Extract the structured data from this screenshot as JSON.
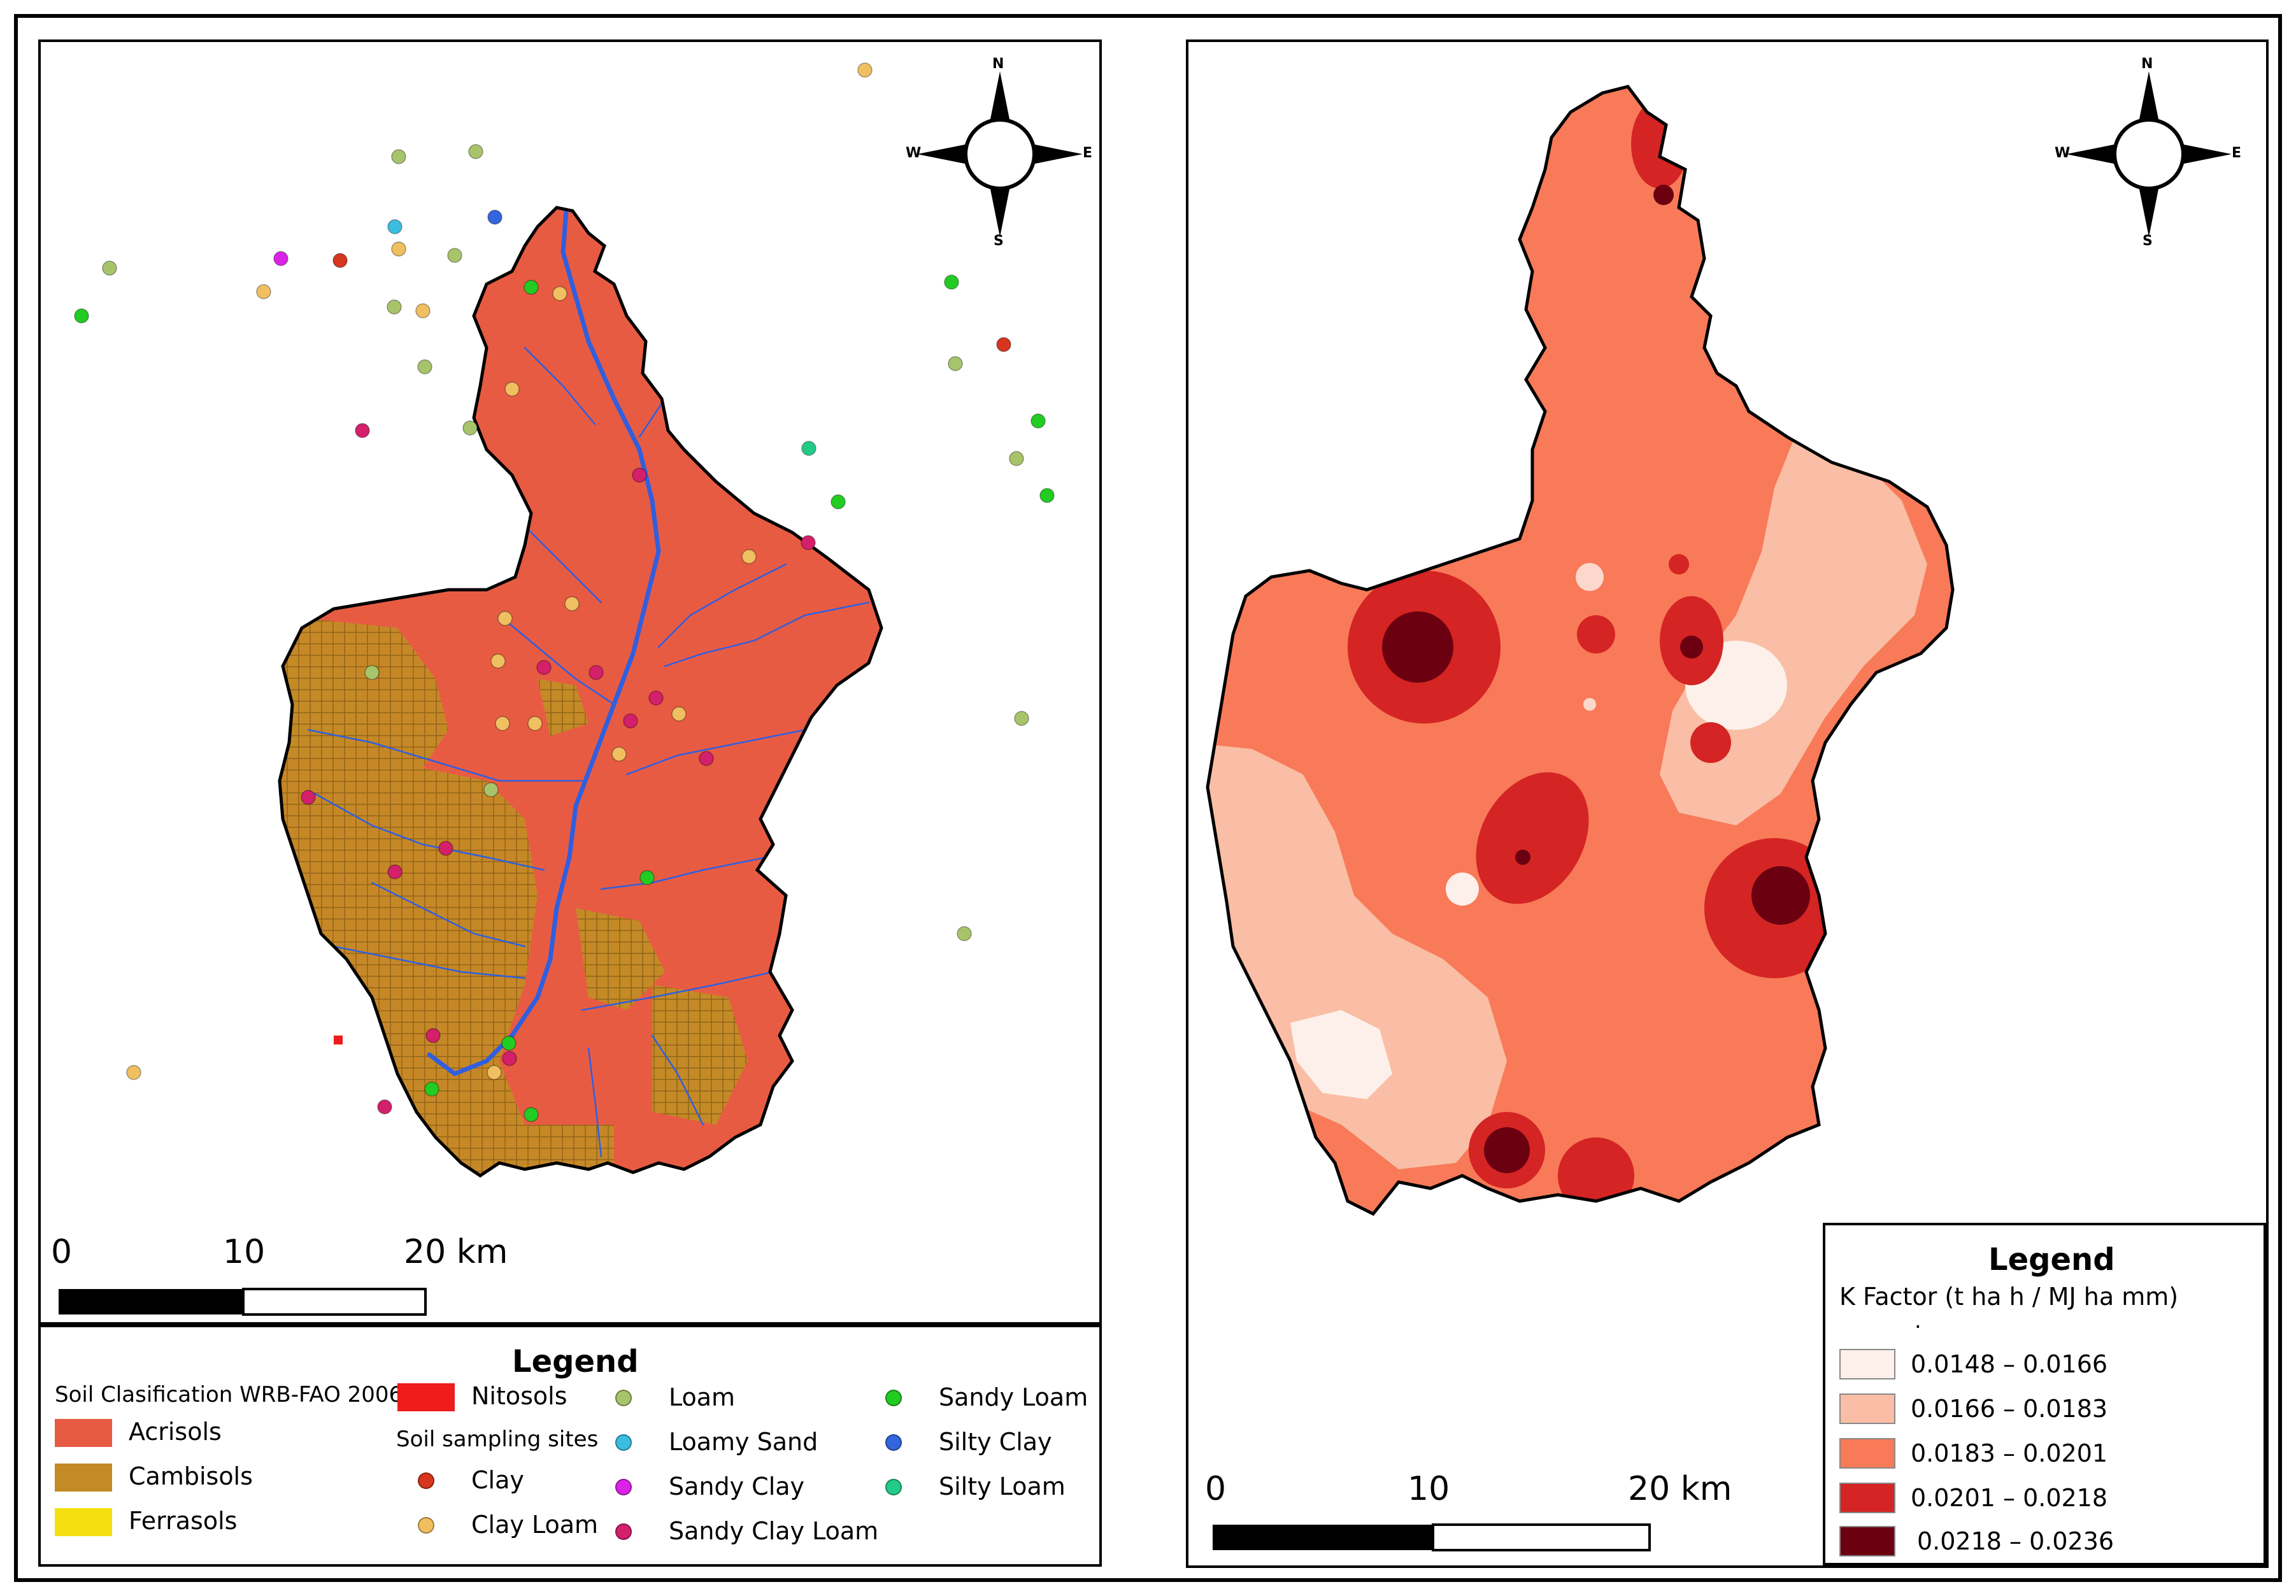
{
  "left_map": {
    "scale": {
      "ticks": [
        "0",
        "10",
        "20 km"
      ]
    },
    "compass": {
      "n": "N",
      "s": "S",
      "e": "E",
      "w": "W"
    },
    "legend": {
      "title": "Legend",
      "soil_class_heading": "Soil Clasification  WRB-FAO 2006",
      "soil_classes": [
        {
          "label": "Acrisols",
          "color": "#e85b43"
        },
        {
          "label": "Cambisols",
          "color": "#c48a26"
        },
        {
          "label": "Ferrasols",
          "color": "#f5df10"
        },
        {
          "label": "Nitosols",
          "color": "#ee1c1c"
        }
      ],
      "sites_heading": "Soil sampling sites",
      "sites": [
        {
          "label": "Clay",
          "color": "#d7351e"
        },
        {
          "label": "Clay Loam",
          "color": "#f0c060"
        },
        {
          "label": "Loam",
          "color": "#a8c46a"
        },
        {
          "label": "Loamy Sand",
          "color": "#3bbde0"
        },
        {
          "label": "Sandy Clay",
          "color": "#dd22e8"
        },
        {
          "label": "Sandy Clay Loam",
          "color": "#d41f6a"
        },
        {
          "label": "Sandy Loam",
          "color": "#22cc22"
        },
        {
          "label": "Silty Clay",
          "color": "#3366dd"
        },
        {
          "label": "Silty Loam",
          "color": "#22cc88"
        }
      ]
    }
  },
  "right_map": {
    "scale": {
      "ticks": [
        "0",
        "10",
        "20 km"
      ]
    },
    "compass": {
      "n": "N",
      "s": "S",
      "e": "E",
      "w": "W"
    },
    "legend": {
      "title": "Legend",
      "subtitle": "K Factor  (t ha h / MJ ha mm)",
      "dot": ".",
      "classes": [
        {
          "label": "0.0148 – 0.0166",
          "color": "#fdf0ea"
        },
        {
          "label": "0.0166 – 0.0183",
          "color": "#f9bea5"
        },
        {
          "label": "0.0183 – 0.0201",
          "color": "#f87a58"
        },
        {
          "label": "0.0201 – 0.0218",
          "color": "#d42424"
        },
        {
          "label": "0.0218 – 0.0236",
          "color": "#6b0010"
        }
      ]
    }
  }
}
